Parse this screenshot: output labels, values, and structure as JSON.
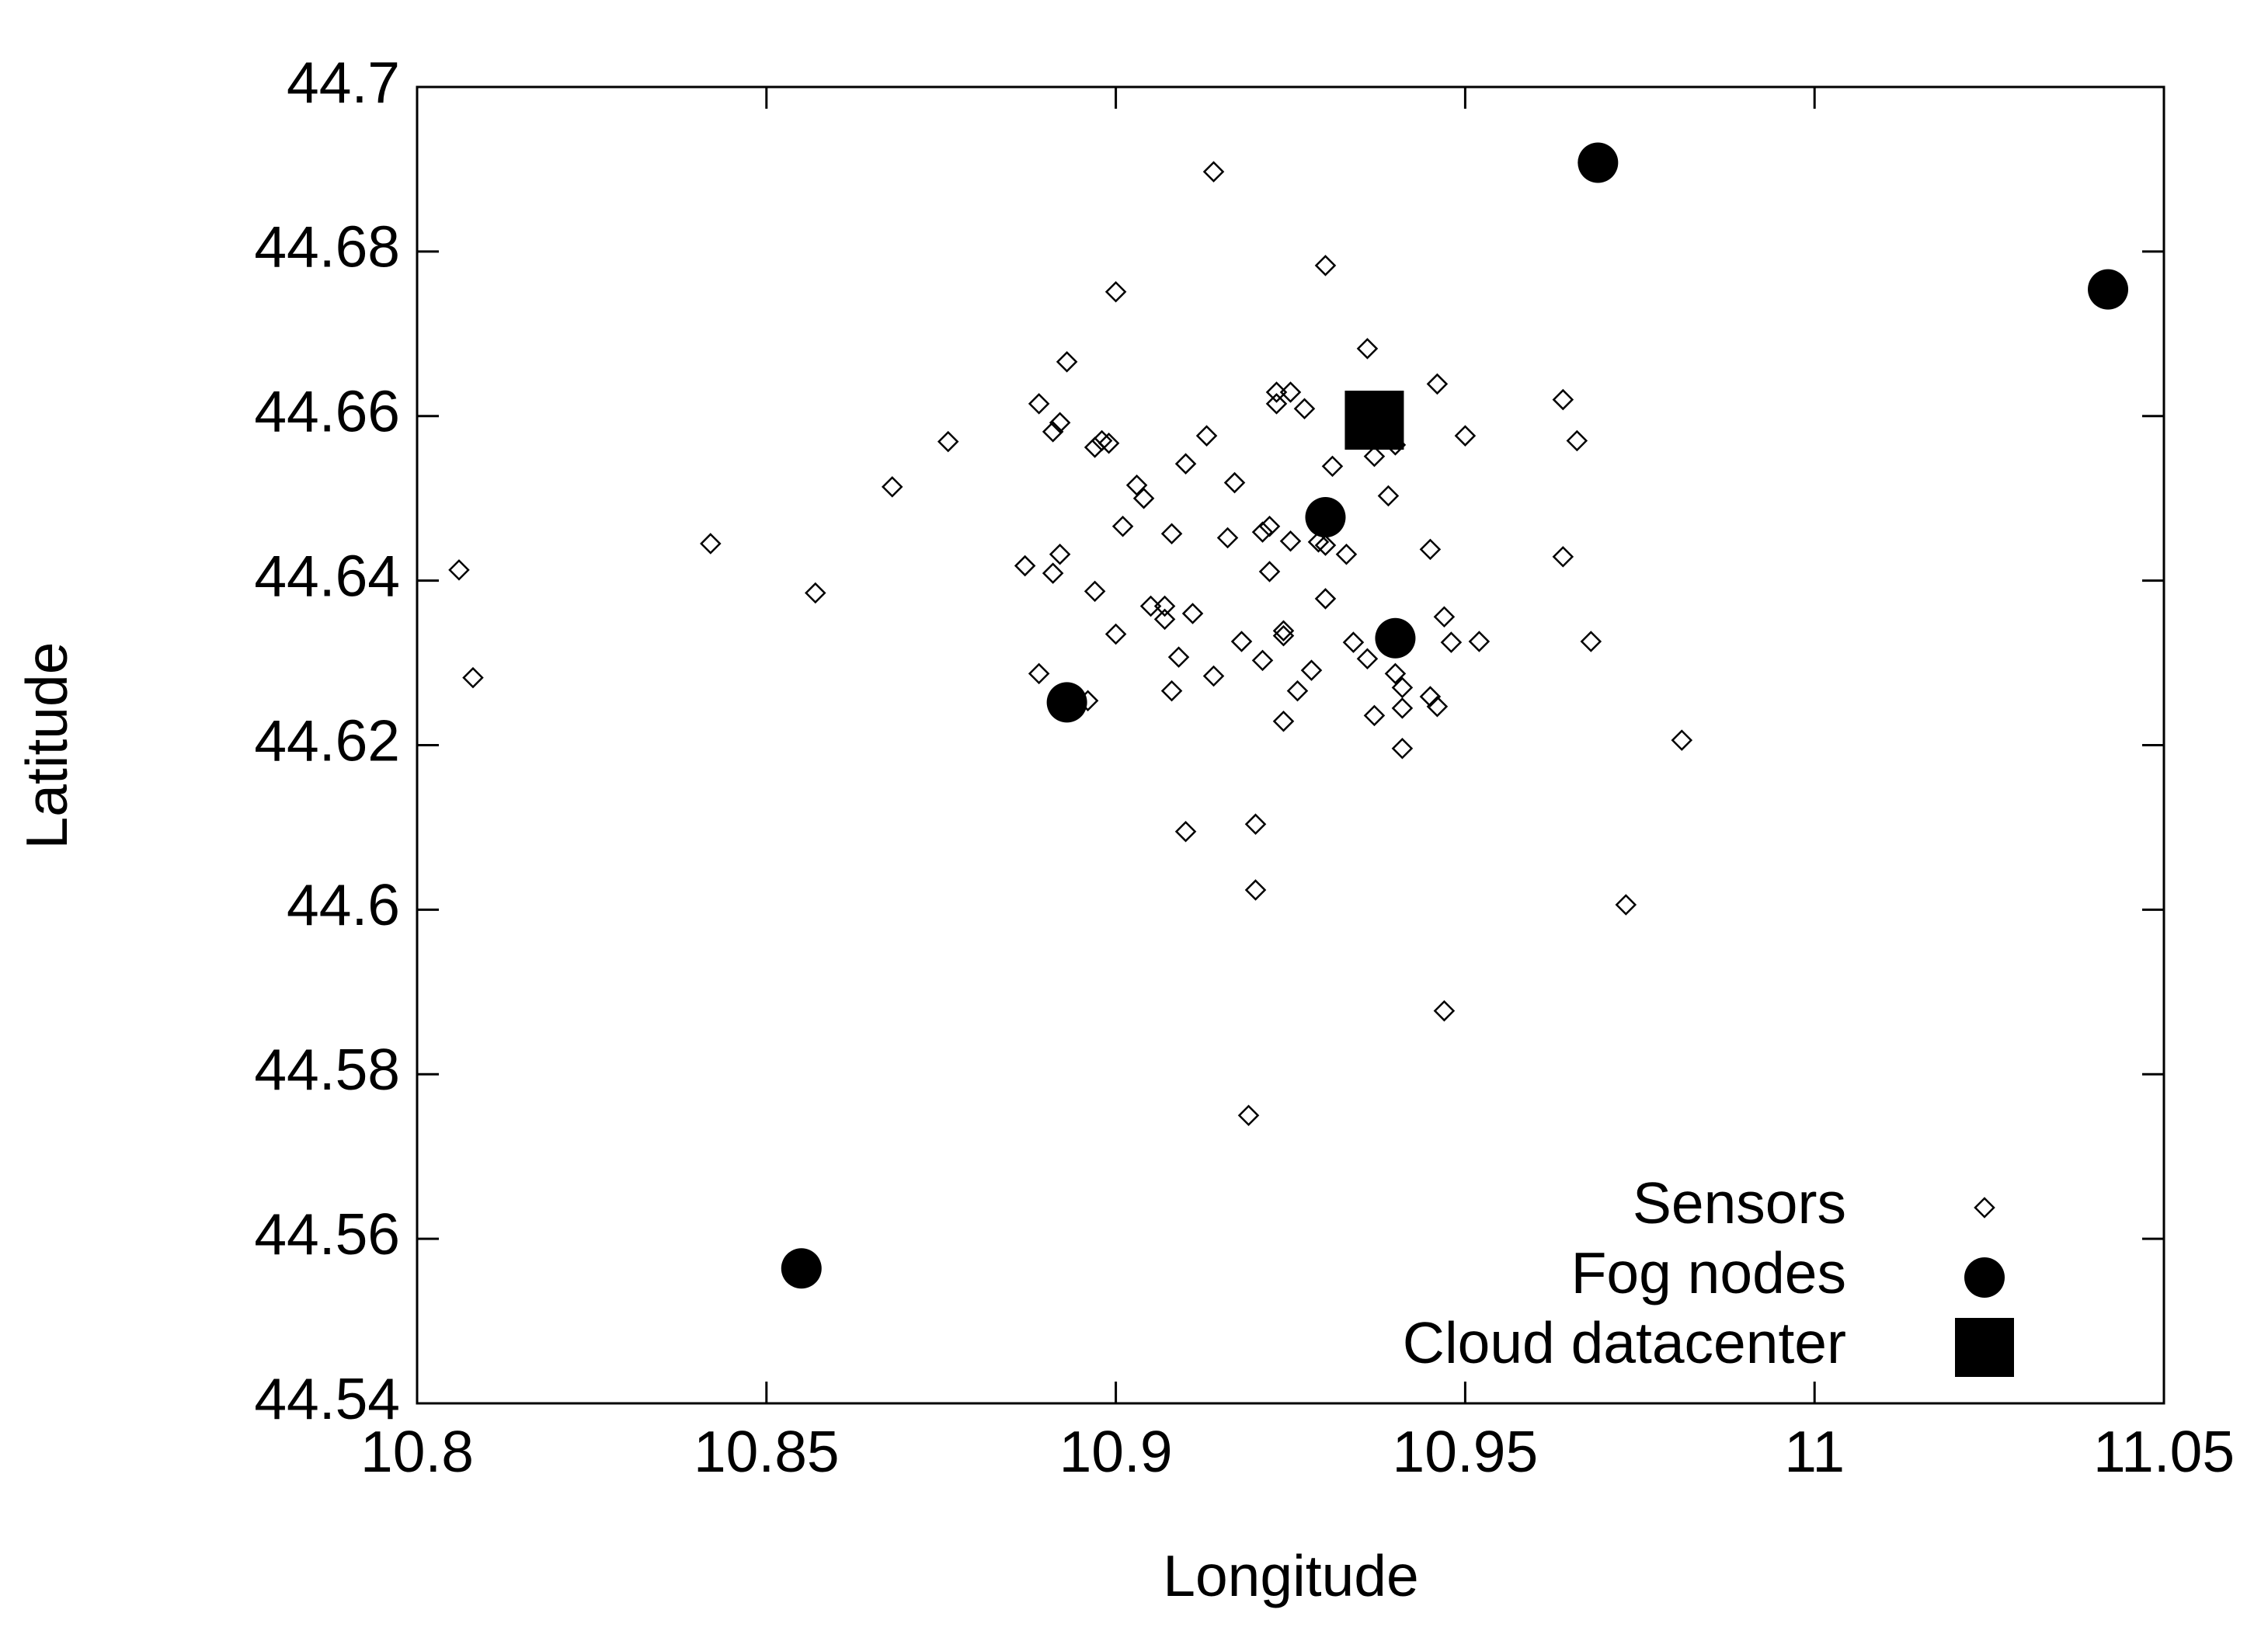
{
  "chart_data": {
    "type": "scatter",
    "xlabel": "Longitude",
    "ylabel": "Latitude",
    "xlim": [
      10.8,
      11.05
    ],
    "ylim": [
      44.54,
      44.7
    ],
    "xticks": [
      10.8,
      10.85,
      10.9,
      10.95,
      11,
      11.05
    ],
    "yticks": [
      44.54,
      44.56,
      44.58,
      44.6,
      44.62,
      44.64,
      44.66,
      44.68,
      44.7
    ],
    "legend": "bottom-right",
    "series": [
      {
        "name": "Sensors",
        "marker": "diamond",
        "color": "#000000",
        "x": [
          10.806,
          10.808,
          10.842,
          10.857,
          10.868,
          10.876,
          10.887,
          10.889,
          10.889,
          10.891,
          10.891,
          10.892,
          10.892,
          10.893,
          10.896,
          10.897,
          10.897,
          10.898,
          10.899,
          10.9,
          10.9,
          10.901,
          10.903,
          10.904,
          10.905,
          10.907,
          10.907,
          10.908,
          10.908,
          10.909,
          10.91,
          10.91,
          10.911,
          10.913,
          10.914,
          10.914,
          10.916,
          10.917,
          10.918,
          10.919,
          10.92,
          10.92,
          10.921,
          10.921,
          10.922,
          10.922,
          10.923,
          10.923,
          10.924,
          10.924,
          10.924,
          10.925,
          10.925,
          10.926,
          10.927,
          10.928,
          10.929,
          10.93,
          10.93,
          10.93,
          10.931,
          10.933,
          10.934,
          10.936,
          10.936,
          10.937,
          10.937,
          10.939,
          10.94,
          10.94,
          10.941,
          10.941,
          10.941,
          10.945,
          10.945,
          10.946,
          10.946,
          10.947,
          10.947,
          10.948,
          10.95,
          10.952,
          10.964,
          10.964,
          10.966,
          10.968,
          10.973,
          10.981
        ],
        "y": [
          44.6413,
          44.6282,
          44.6445,
          44.6385,
          44.6514,
          44.6569,
          44.6418,
          44.6287,
          44.6615,
          44.6581,
          44.6409,
          44.6432,
          44.6592,
          44.6666,
          44.6254,
          44.6562,
          44.6387,
          44.657,
          44.6567,
          44.6751,
          44.6335,
          44.6466,
          44.6516,
          44.65,
          44.6369,
          44.6369,
          44.6353,
          44.6457,
          44.6266,
          44.6307,
          44.6542,
          44.6095,
          44.636,
          44.6576,
          44.6897,
          44.6284,
          44.6452,
          44.6519,
          44.6326,
          44.575,
          44.6024,
          44.6104,
          44.6303,
          44.6459,
          44.6466,
          44.6411,
          44.6629,
          44.6615,
          44.6339,
          44.6333,
          44.6229,
          44.6629,
          44.6448,
          44.6266,
          44.6609,
          44.6291,
          44.6447,
          44.6443,
          44.6378,
          44.6783,
          44.6539,
          44.6432,
          44.6325,
          44.6305,
          44.6682,
          44.6551,
          44.6236,
          44.6503,
          44.6287,
          44.6565,
          44.627,
          44.6245,
          44.6196,
          44.6438,
          44.6259,
          44.6639,
          44.6247,
          44.5877,
          44.6356,
          44.6325,
          44.6576,
          44.6326,
          44.662,
          44.6429,
          44.657,
          44.6326,
          44.6006,
          44.6206
        ]
      },
      {
        "name": "Fog nodes",
        "marker": "circle",
        "color": "#000000",
        "x": [
          10.969,
          11.042,
          10.93,
          10.94,
          10.893,
          10.855
        ],
        "y": [
          44.6908,
          44.6754,
          44.6477,
          44.633,
          44.6252,
          44.5564
        ]
      },
      {
        "name": "Cloud datacenter",
        "marker": "square",
        "color": "#000000",
        "x": [
          10.937
        ],
        "y": [
          44.6595
        ]
      }
    ]
  }
}
